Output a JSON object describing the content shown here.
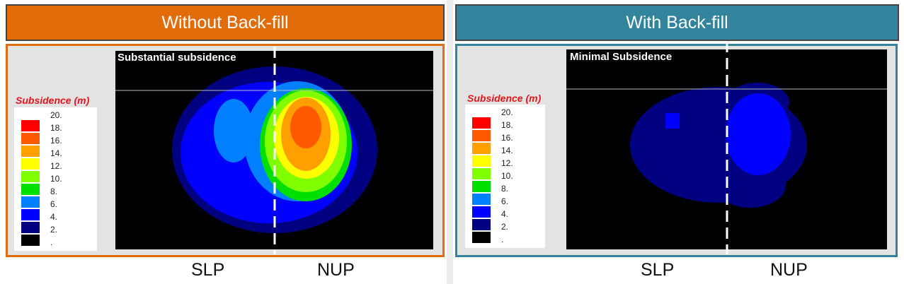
{
  "panels": [
    {
      "title": "Without Back-fill",
      "annotation": "Substantial subsidence",
      "accent": "#E36C0A"
    },
    {
      "title": "With Back-fill",
      "annotation": "Minimal Subsidence",
      "accent": "#31849B"
    }
  ],
  "legend": {
    "title": "Subsidence (m)",
    "labels": [
      "20.",
      "18.",
      "16.",
      "14.",
      "12.",
      "10.",
      "8.",
      "6.",
      "4.",
      "2.",
      "."
    ],
    "colors": [
      "#ff0000",
      "#ff5a00",
      "#ffa000",
      "#ffff00",
      "#80ff00",
      "#00e000",
      "#0080ff",
      "#0000ff",
      "#000080",
      "#000000"
    ]
  },
  "axis_labels": {
    "left": "SLP",
    "right": "NUP"
  }
}
